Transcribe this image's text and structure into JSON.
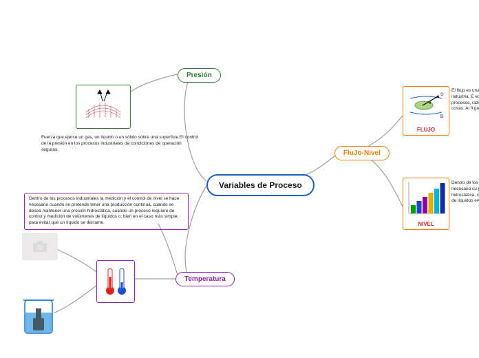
{
  "center": {
    "label": "Variables de Proceso",
    "border": "#2060c0"
  },
  "presion": {
    "label": "Presión",
    "color": "#2e7d32",
    "text": "Fuerza que ejerce un gas, un líquido o un sólido sobre una superficie.El control de la presión en los procesos industriales da condiciones de operación seguras."
  },
  "temperatura": {
    "label": "Temperatura",
    "color": "#8e24aa",
    "text": "Dentro de los procesos industriales la medición y el control de nivel se hace necesario cuando se pretende tener una producción continua, cuando se desea mantener una presión hidrostática, cuando un proceso requiere de control y medición de volúmenes de líquidos o; bien en el caso más simple, para evitar que un líquido se derrame."
  },
  "flujo_nivel": {
    "label": "FluJo-Nivel",
    "color": "#f57c00"
  },
  "flujo": {
    "title": "FLUJO",
    "color": "#d32f2f",
    "box_border": "#f57c00",
    "text": "El flujo es una de las más medidas en la industria. E en la transferencia de pro los procesos, razón de rea muchas otras cosas. Al fi ganar o perder la industri"
  },
  "nivel": {
    "title": "NIVEL",
    "color": "#d32f2f",
    "box_border": "#f57c00",
    "text": "Dentro de los procesos inc nivel se hace necesario cu producción continua, cuan hidrostática, cuando un pr de volúmenes de líquidos evitar que un líquido se de",
    "bars": {
      "colors": [
        "#00a000",
        "#2040d0",
        "#9000a0",
        "#e0b000",
        "#00b0e0",
        "#1030a0"
      ],
      "heights": [
        12,
        18,
        24,
        30,
        36,
        44
      ]
    }
  },
  "style": {
    "connection_stroke": "#9e9e9e",
    "connection_width": 1.2
  }
}
